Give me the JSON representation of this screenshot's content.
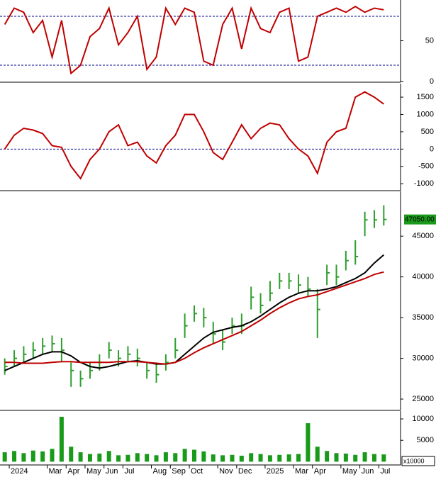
{
  "chart_data": [
    {
      "type": "line",
      "xlim": [
        -0.5,
        40.5
      ],
      "ylim": [
        0,
        100
      ],
      "yticks": [
        0,
        50
      ],
      "reference_lines": [
        20,
        80
      ],
      "series": [
        {
          "color": "#c00000",
          "values": [
            70,
            90,
            85,
            60,
            75,
            30,
            75,
            10,
            20,
            55,
            65,
            90,
            45,
            60,
            80,
            15,
            30,
            90,
            70,
            90,
            85,
            25,
            20,
            70,
            90,
            40,
            90,
            65,
            60,
            85,
            90,
            25,
            30,
            80,
            85,
            90,
            85,
            92,
            85,
            90,
            88
          ]
        }
      ]
    },
    {
      "type": "line",
      "xlim": [
        -0.5,
        40.5
      ],
      "ylim": [
        -1180,
        1890
      ],
      "yticks": [
        -1000,
        -500,
        0,
        500,
        1000,
        1500
      ],
      "reference_lines": [
        0
      ],
      "series": [
        {
          "color": "#c00000",
          "values": [
            0,
            400,
            600,
            550,
            450,
            100,
            50,
            -500,
            -850,
            -300,
            0,
            500,
            700,
            100,
            200,
            -200,
            -400,
            100,
            400,
            1000,
            1000,
            500,
            -100,
            -300,
            200,
            700,
            300,
            600,
            750,
            700,
            300,
            0,
            -200,
            -700,
            200,
            500,
            600,
            1500,
            1650,
            1500,
            1300
          ]
        }
      ]
    },
    {
      "type": "candlestick",
      "xlim": [
        -0.5,
        40.5
      ],
      "ylim": [
        23700,
        50500
      ],
      "yticks": [
        25000,
        30000,
        35000,
        40000,
        45000
      ],
      "color": "#2e9e2e",
      "last_label": "47050.00",
      "close": [
        29000,
        30000,
        30500,
        31000,
        31500,
        31800,
        31000,
        28500,
        27500,
        28500,
        29500,
        31000,
        30000,
        30500,
        30000,
        28500,
        28000,
        29500,
        31000,
        34000,
        35500,
        35000,
        33000,
        32000,
        34000,
        34000,
        37500,
        36500,
        38000,
        39500,
        39500,
        39000,
        38500,
        36000,
        40500,
        40000,
        42000,
        42500,
        47000,
        47000,
        47050
      ],
      "high": [
        30000,
        31000,
        31500,
        32000,
        32500,
        32800,
        32500,
        29500,
        28500,
        29500,
        30500,
        32000,
        31000,
        31500,
        31200,
        29500,
        29500,
        30500,
        32500,
        35500,
        36500,
        36200,
        34500,
        33500,
        35000,
        35500,
        38800,
        38000,
        39500,
        40500,
        40500,
        40300,
        40000,
        38500,
        41500,
        41500,
        43200,
        44500,
        48000,
        48200,
        48800
      ],
      "low": [
        28000,
        29000,
        29500,
        30000,
        30500,
        30800,
        29500,
        26500,
        26500,
        27500,
        28500,
        30000,
        29000,
        29500,
        29000,
        27500,
        27000,
        28500,
        30000,
        32500,
        34500,
        33800,
        31800,
        31000,
        33000,
        33000,
        36000,
        35500,
        37000,
        38500,
        38500,
        38000,
        37500,
        32500,
        39000,
        39000,
        40800,
        41500,
        45000,
        46000,
        46300
      ],
      "series": [
        {
          "color": "#000000",
          "values": [
            28500,
            29000,
            29500,
            30000,
            30500,
            30800,
            30800,
            30300,
            29500,
            29000,
            28800,
            29000,
            29300,
            29600,
            29700,
            29500,
            29300,
            29300,
            29500,
            30500,
            31500,
            32500,
            33200,
            33500,
            33800,
            34000,
            34500,
            35200,
            36000,
            36800,
            37500,
            38000,
            38300,
            38300,
            38500,
            38800,
            39300,
            39800,
            40500,
            41700,
            42700
          ]
        },
        {
          "color": "#c00000",
          "values": [
            29500,
            29500,
            29400,
            29400,
            29400,
            29500,
            29600,
            29600,
            29500,
            29500,
            29500,
            29500,
            29600,
            29600,
            29600,
            29500,
            29400,
            29300,
            29500,
            30000,
            30700,
            31300,
            31800,
            32300,
            32800,
            33300,
            34000,
            34700,
            35500,
            36200,
            36800,
            37300,
            37600,
            37800,
            38200,
            38600,
            39000,
            39400,
            39800,
            40300,
            40600
          ]
        }
      ]
    },
    {
      "type": "bar",
      "xlim": [
        -0.5,
        40.5
      ],
      "ylim": [
        -600,
        11830
      ],
      "yticks": [
        5000,
        10000
      ],
      "unit_label": "x10000",
      "color": "#1a9a1a",
      "values": [
        2200,
        2500,
        2000,
        2600,
        2400,
        3000,
        10500,
        3500,
        2200,
        1800,
        1900,
        2500,
        1500,
        1600,
        2000,
        1800,
        1500,
        2200,
        2000,
        3000,
        2800,
        2400,
        1700,
        1500,
        1600,
        1400,
        2000,
        1800,
        1500,
        1600,
        1700,
        1800,
        9000,
        3500,
        2500,
        2000,
        1900,
        1600,
        2200,
        1800,
        1700
      ],
      "xticks": [
        {
          "value": 1,
          "label": "2024"
        },
        {
          "value": 5,
          "label": "Mar"
        },
        {
          "value": 7,
          "label": "Apr"
        },
        {
          "value": 9,
          "label": "May"
        },
        {
          "value": 11,
          "label": "Jun"
        },
        {
          "value": 13,
          "label": "Jul"
        },
        {
          "value": 16,
          "label": "Aug"
        },
        {
          "value": 18,
          "label": "Sep"
        },
        {
          "value": 20,
          "label": "Oct"
        },
        {
          "value": 23,
          "label": "Nov"
        },
        {
          "value": 25,
          "label": "Dec"
        },
        {
          "value": 28,
          "label": "2025"
        },
        {
          "value": 31,
          "label": "Mar"
        },
        {
          "value": 33,
          "label": "Apr"
        },
        {
          "value": 36,
          "label": "May"
        },
        {
          "value": 38,
          "label": "Jun"
        },
        {
          "value": 40,
          "label": "Jul"
        }
      ]
    }
  ]
}
